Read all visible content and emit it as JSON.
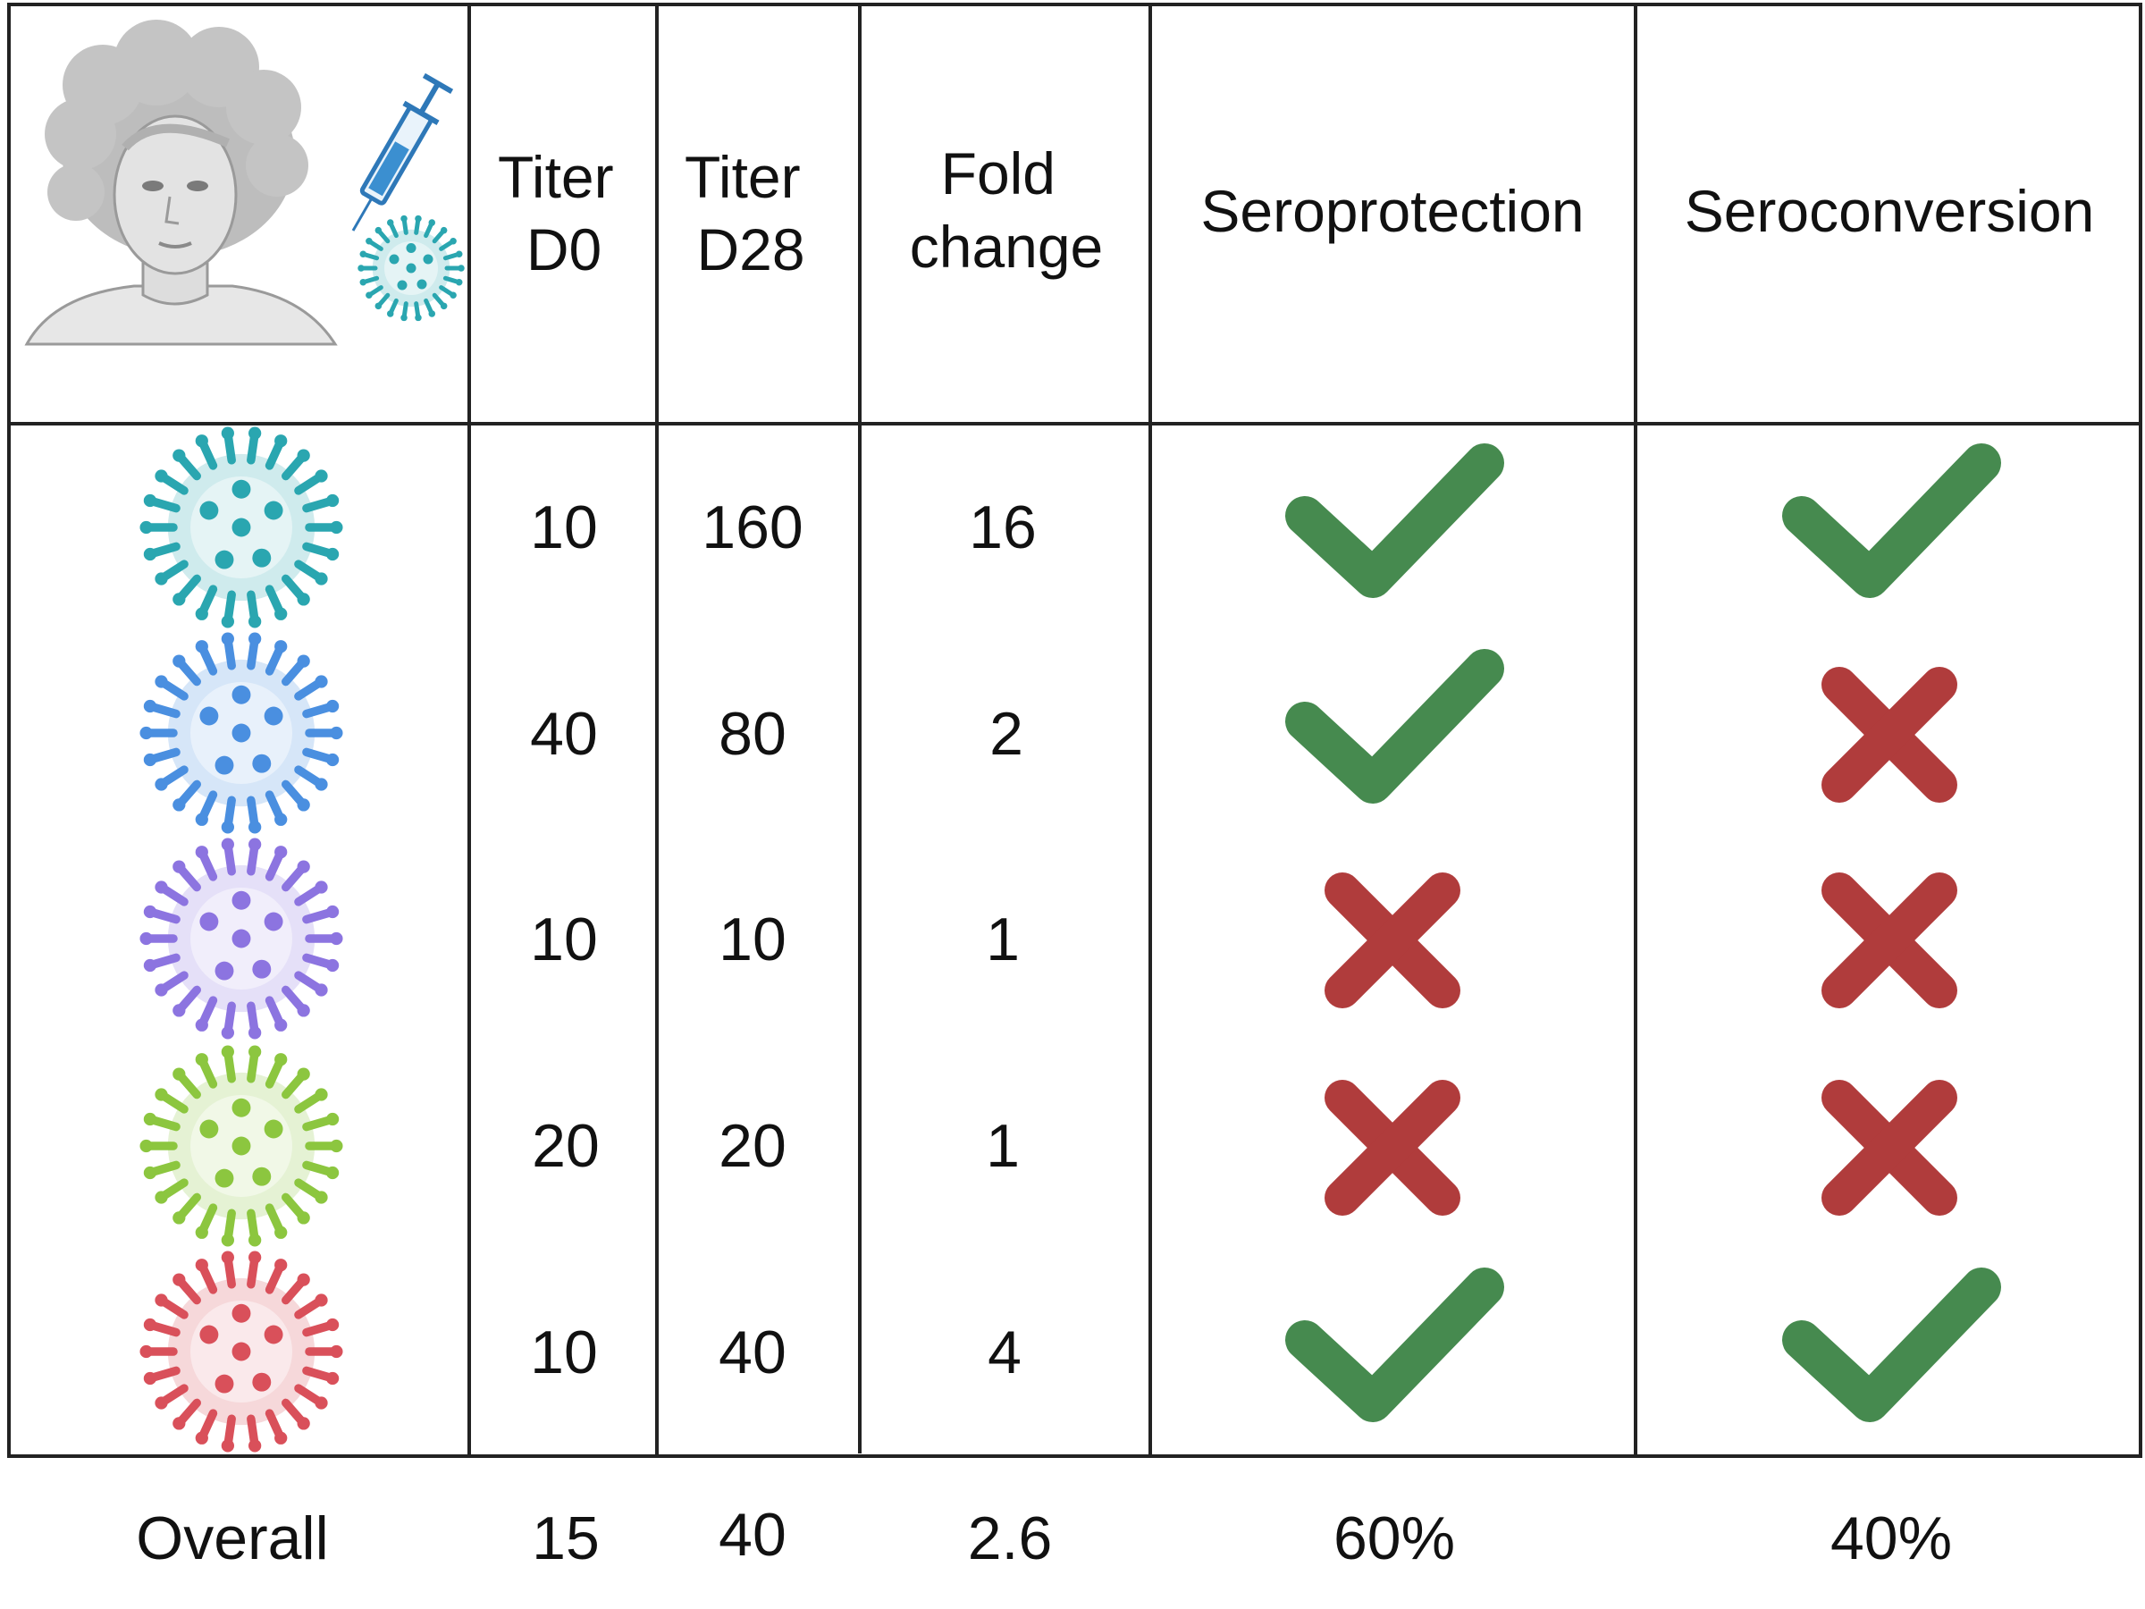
{
  "header": {
    "titer_d0": [
      "Titer",
      "D0"
    ],
    "titer_d28": [
      "Titer",
      "D28"
    ],
    "fold_change": [
      "Fold",
      "change"
    ],
    "seroprotection": "Seroprotection",
    "seroconversion": "Seroconversion",
    "illustration_icons": [
      "person-icon",
      "syringe-icon",
      "virus-icon"
    ]
  },
  "rows": [
    {
      "strain_icon": "virus-teal-icon",
      "virus_color": "#2aa6b0",
      "titer_d0": "10",
      "titer_d28": "160",
      "fold_change": "16",
      "seroprotection": "check",
      "seroconversion": "check"
    },
    {
      "strain_icon": "virus-blue-icon",
      "virus_color": "#4a8fe0",
      "titer_d0": "40",
      "titer_d28": "80",
      "fold_change": "2",
      "seroprotection": "check",
      "seroconversion": "cross"
    },
    {
      "strain_icon": "virus-purple-icon",
      "virus_color": "#8c74e0",
      "titer_d0": "10",
      "titer_d28": "10",
      "fold_change": "1",
      "seroprotection": "cross",
      "seroconversion": "cross"
    },
    {
      "strain_icon": "virus-green-icon",
      "virus_color": "#8cc63f",
      "titer_d0": "20",
      "titer_d28": "20",
      "fold_change": "1",
      "seroprotection": "cross",
      "seroconversion": "cross"
    },
    {
      "strain_icon": "virus-red-icon",
      "virus_color": "#d9505a",
      "titer_d0": "10",
      "titer_d28": "40",
      "fold_change": "4",
      "seroprotection": "check",
      "seroconversion": "check"
    }
  ],
  "overall": {
    "label": "Overall",
    "titer_d0": "15",
    "titer_d28": "40",
    "fold_change": "2.6",
    "seroprotection": "60%",
    "seroconversion": "40%"
  },
  "colors": {
    "check": "#468a4f",
    "cross": "#b03c3c",
    "grid": "#222222",
    "syringe": "#2e78b8"
  }
}
